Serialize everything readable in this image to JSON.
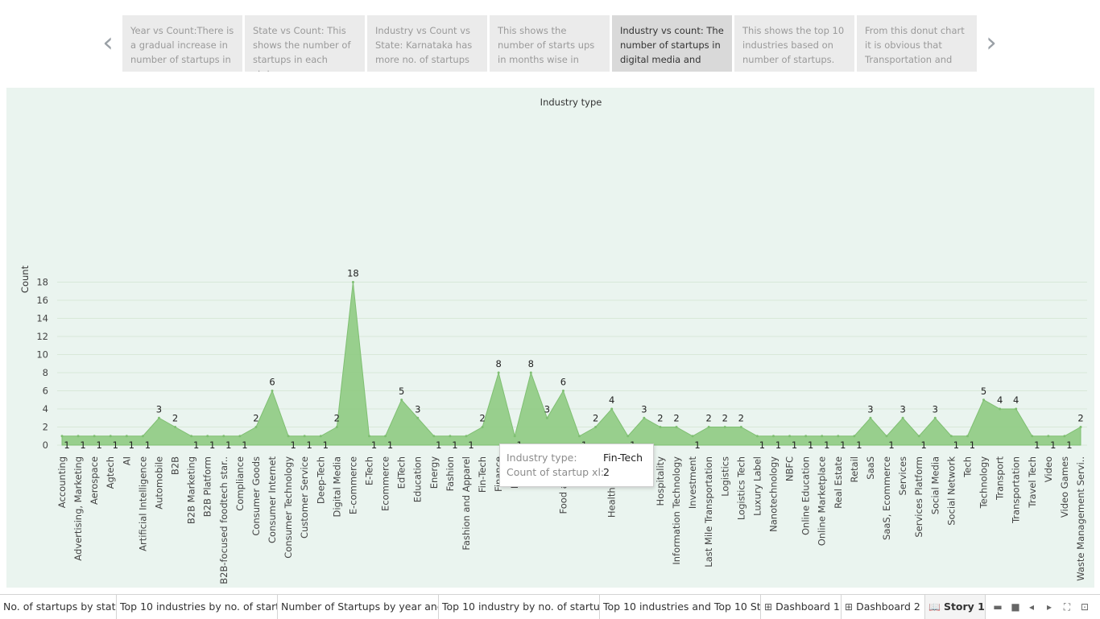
{
  "story": {
    "prev_arrow": "‹",
    "next_arrow": "›",
    "points": [
      {
        "text": "Year vs Count:There is a gradual increase in number of startups in"
      },
      {
        "text": "State vs Count: This shows the number of startups in each state."
      },
      {
        "text": "Industry vs Count vs State: Karnataka has more no. of startups"
      },
      {
        "text": "This shows the number of starts ups in months wise in"
      },
      {
        "text": "Industry vs count: The number of startups in digital media and",
        "active": true
      },
      {
        "text": "This shows the top 10 industries based on number of startups."
      },
      {
        "text": "From this donut chart it is obvious that Transportation and"
      }
    ]
  },
  "chart_data": {
    "type": "area",
    "title": "Industry type",
    "ylabel": "Count",
    "xlabel": "",
    "ylim": [
      0,
      19
    ],
    "yticks": [
      0,
      2,
      4,
      6,
      8,
      10,
      12,
      14,
      16,
      18
    ],
    "grid": true,
    "color": "#8fcb82",
    "categories": [
      "Accounting",
      "Advertising, Marketing",
      "Aerospace",
      "Agtech",
      "AI",
      "Artificial Intelligence",
      "Automobile",
      "B2B",
      "B2B Marketing",
      "B2B Platform",
      "B2B-focused foodtech star..",
      "Compliance",
      "Consumer Goods",
      "Consumer Internet",
      "Consumer Technology",
      "Customer Service",
      "Deep-Tech",
      "Digital Media",
      "E-commerce",
      "E-Tech",
      "Ecommerce",
      "EdTech",
      "Education",
      "Energy",
      "Fashion",
      "Fashion and Apparel",
      "Fin-Tech",
      "Finance",
      "Financi",
      "F",
      "",
      "Food and Be",
      "Foo",
      "G",
      "",
      "Healt",
      "Heal",
      "Hospitality",
      "Information Technology",
      "Investment",
      "Last Mile Transportation",
      "Logistics",
      "Logistics Tech",
      "Luxury Label",
      "Nanotechnology",
      "NBFC",
      "Online Education",
      "Online Marketplace",
      "Real Estate",
      "Retail",
      "SaaS",
      "SaaS, Ecommerce",
      "Services",
      "Services Platform",
      "Social Media",
      "Social Network",
      "Tech",
      "Technology",
      "Transport",
      "Transportation",
      "Travel Tech",
      "Video",
      "Video Games",
      "Waste Management Servi.."
    ],
    "tick_labels": [
      "Accounting",
      "Advertising, Marketing",
      "Aerospace",
      "Agtech",
      "AI",
      "Artificial Intelligence",
      "Automobile",
      "B2B",
      "B2B Marketing",
      "B2B Platform",
      "B2B-focused foodtech star..",
      "Compliance",
      "Consumer Goods",
      "Consumer Internet",
      "Consumer Technology",
      "Customer Service",
      "Deep-Tech",
      "Digital Media",
      "E-commerce",
      "E-Tech",
      "Ecommerce",
      "EdTech",
      "Education",
      "Energy",
      "Fashion",
      "Fashion and Apparel",
      "Fin-Tech",
      "Finance",
      "Financi",
      "F",
      "",
      "Food and Be",
      "Foo",
      "G",
      "Health and w",
      "Healt",
      "Heal",
      "Hospitality",
      "Information Technology",
      "Investment",
      "Last Mile Transportation",
      "Logistics",
      "Logistics Tech",
      "Luxury Label",
      "Nanotechnology",
      "NBFC",
      "Online Education",
      "Online Marketplace",
      "Real Estate",
      "Retail",
      "SaaS",
      "SaaS, Ecommerce",
      "Services",
      "Services Platform",
      "Social Media",
      "Social Network",
      "Tech",
      "Technology",
      "Transport",
      "Transportation",
      "Travel Tech",
      "Video",
      "Video Games",
      "Waste Management Servi.."
    ],
    "values": [
      1,
      1,
      1,
      1,
      1,
      1,
      3,
      2,
      1,
      1,
      1,
      1,
      2,
      6,
      1,
      1,
      1,
      2,
      18,
      1,
      1,
      5,
      3,
      1,
      1,
      1,
      2,
      8,
      1,
      8,
      3,
      6,
      1,
      2,
      4,
      1,
      3,
      2,
      2,
      1,
      2,
      2,
      2,
      1,
      1,
      1,
      1,
      1,
      1,
      1,
      3,
      1,
      3,
      1,
      3,
      1,
      1,
      5,
      4,
      4,
      1,
      1,
      1,
      2
    ],
    "data_labels": [
      "1",
      "1",
      "1",
      "1",
      "1",
      "1",
      "3",
      "2",
      "1",
      "1",
      "1",
      "1",
      "2",
      "6",
      "1",
      "1",
      "1",
      "2",
      "18",
      "1",
      "1",
      "5",
      "3",
      "1",
      "1",
      "1",
      "2",
      "8",
      "1",
      "8",
      "3",
      "6",
      "1",
      "2",
      "4",
      "1",
      "3",
      "2",
      "2",
      "1",
      "2",
      "2",
      "2",
      "1",
      "1",
      "1",
      "1",
      "1",
      "1",
      "1",
      "3",
      "1",
      "3",
      "1",
      "3",
      "1",
      "1",
      "5",
      "4",
      "4",
      "1",
      "1",
      "1",
      "2"
    ]
  },
  "tooltip": {
    "k1": "Industry type:",
    "v1": "Fin-Tech",
    "k2": "Count of startup xl:",
    "v2": "2"
  },
  "tabs": [
    {
      "label": "No. of startups by state"
    },
    {
      "label": "Top 10 industries by no. of start..."
    },
    {
      "label": "Number of Startups by year and..."
    },
    {
      "label": "Top 10 industry by no. of startups"
    },
    {
      "label": "Top 10 industries and Top 10 St..."
    },
    {
      "label": "Dashboard 1",
      "icon": "dashboard-icon",
      "glyph": "⊞"
    },
    {
      "label": "Dashboard 2",
      "icon": "dashboard-icon",
      "glyph": "⊞"
    },
    {
      "label": "Story 1",
      "icon": "story-icon",
      "glyph": "📖",
      "active": true
    }
  ],
  "controls": [
    {
      "name": "filmstrip-view-icon",
      "glyph": "▬"
    },
    {
      "name": "single-view-icon",
      "glyph": "■"
    },
    {
      "name": "previous-sheet-icon",
      "glyph": "◂"
    },
    {
      "name": "next-sheet-icon",
      "glyph": "▸"
    },
    {
      "name": "fit-to-window-icon",
      "glyph": "⛶"
    },
    {
      "name": "presentation-mode-icon",
      "glyph": "⊡"
    }
  ]
}
